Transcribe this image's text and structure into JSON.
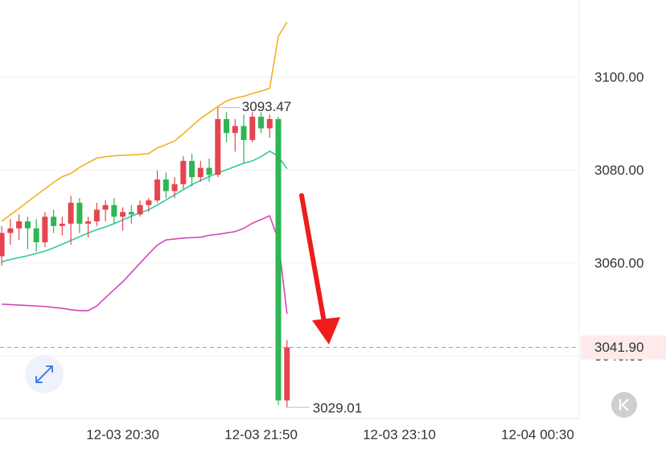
{
  "chart_data": {
    "type": "candlestick",
    "x": [
      "12-03 19:20",
      "12-03 19:25",
      "12-03 19:30",
      "12-03 19:35",
      "12-03 19:40",
      "12-03 19:45",
      "12-03 19:50",
      "12-03 19:55",
      "12-03 20:00",
      "12-03 20:05",
      "12-03 20:10",
      "12-03 20:15",
      "12-03 20:20",
      "12-03 20:25",
      "12-03 20:30",
      "12-03 20:35",
      "12-03 20:40",
      "12-03 20:45",
      "12-03 20:50",
      "12-03 20:55",
      "12-03 21:00",
      "12-03 21:05",
      "12-03 21:10",
      "12-03 21:15",
      "12-03 21:20",
      "12-03 21:25",
      "12-03 21:30",
      "12-03 21:35",
      "12-03 21:40",
      "12-03 21:45",
      "12-03 21:50",
      "12-03 21:55",
      "12-03 22:00",
      "12-03 22:05"
    ],
    "open": [
      3061.5,
      3066.5,
      3067.5,
      3069.0,
      3067.5,
      3064.5,
      3070.0,
      3068.0,
      3068.5,
      3073.0,
      3068.5,
      3069.0,
      3071.5,
      3072.5,
      3070.0,
      3071.0,
      3070.5,
      3072.5,
      3073.5,
      3078.0,
      3075.5,
      3077.0,
      3082.0,
      3078.5,
      3080.5,
      3079.0,
      3091.0,
      3088.0,
      3089.5,
      3086.5,
      3091.5,
      3089.0,
      3091.0,
      3030.5
    ],
    "high": [
      3068.0,
      3069.5,
      3070.5,
      3070.0,
      3069.5,
      3071.0,
      3071.5,
      3070.0,
      3074.5,
      3074.0,
      3070.0,
      3073.0,
      3073.5,
      3074.0,
      3072.0,
      3072.5,
      3073.5,
      3074.0,
      3080.0,
      3079.5,
      3078.5,
      3083.0,
      3083.5,
      3082.0,
      3082.5,
      3093.47,
      3092.5,
      3091.0,
      3092.0,
      3092.5,
      3092.5,
      3092.0,
      3091.5,
      3043.5
    ],
    "low": [
      3059.5,
      3064.0,
      3065.0,
      3063.0,
      3062.5,
      3063.5,
      3066.5,
      3066.0,
      3064.0,
      3066.5,
      3065.5,
      3068.0,
      3069.0,
      3068.5,
      3067.0,
      3068.5,
      3070.0,
      3071.0,
      3073.0,
      3074.0,
      3074.0,
      3076.0,
      3076.5,
      3077.5,
      3077.5,
      3078.5,
      3086.0,
      3084.0,
      3081.5,
      3086.0,
      3088.0,
      3087.0,
      3029.5,
      3029.01
    ],
    "close": [
      3066.5,
      3067.5,
      3069.0,
      3067.5,
      3064.5,
      3070.0,
      3068.0,
      3068.5,
      3073.0,
      3068.5,
      3069.0,
      3071.5,
      3072.5,
      3070.0,
      3071.0,
      3070.5,
      3072.5,
      3073.5,
      3078.0,
      3075.5,
      3077.0,
      3082.0,
      3078.5,
      3080.5,
      3079.0,
      3091.0,
      3088.0,
      3089.5,
      3086.5,
      3091.5,
      3089.0,
      3091.0,
      3030.5,
      3041.9
    ],
    "up_color": "#e5454f",
    "down_color": "#2fb553",
    "lines": [
      {
        "color": "#f2b01e",
        "values": [
          3069.0,
          3070.4,
          3071.8,
          3073.2,
          3074.6,
          3076.0,
          3077.4,
          3078.6,
          3079.3,
          3080.6,
          3081.6,
          3082.6,
          3082.9,
          3083.1,
          3083.2,
          3083.3,
          3083.4,
          3083.6,
          3084.8,
          3085.5,
          3086.3,
          3087.8,
          3089.5,
          3091.1,
          3092.4,
          3093.7,
          3094.9,
          3095.5,
          3095.9,
          3096.5,
          3097.0,
          3097.6,
          3108.8,
          3111.8
        ]
      },
      {
        "color": "#2ec9a3",
        "values": [
          3060.3,
          3060.8,
          3061.2,
          3061.6,
          3062.1,
          3062.6,
          3063.3,
          3064.1,
          3064.9,
          3065.7,
          3066.5,
          3067.2,
          3067.8,
          3068.5,
          3069.3,
          3070.1,
          3070.8,
          3071.5,
          3072.5,
          3073.6,
          3074.7,
          3075.8,
          3076.9,
          3077.8,
          3078.6,
          3079.4,
          3080.1,
          3080.8,
          3081.5,
          3082.0,
          3082.9,
          3084.1,
          3083.0,
          3080.3
        ]
      },
      {
        "color": "#d447b8",
        "values": [
          3051.2,
          3051.1,
          3051.0,
          3050.9,
          3050.8,
          3050.7,
          3050.5,
          3050.3,
          3050.0,
          3049.8,
          3049.8,
          3050.8,
          3052.6,
          3054.3,
          3056.0,
          3058.0,
          3060.0,
          3062.0,
          3063.9,
          3065.0,
          3065.2,
          3065.4,
          3065.5,
          3065.6,
          3066.0,
          3066.2,
          3066.5,
          3066.8,
          3067.5,
          3068.6,
          3069.4,
          3070.2,
          3065.0,
          3049.1
        ]
      }
    ],
    "xlim": [
      "12-03 19:19",
      "12-04 00:54"
    ],
    "xticks": [
      "12-03 20:30",
      "12-03 21:50",
      "12-03 23:10",
      "12-04 00:30"
    ],
    "ylim": [
      3026.6,
      3116.6
    ],
    "yticks": [
      {
        "value": 3040,
        "label": "3040.00"
      },
      {
        "value": 3060,
        "label": "3060.00"
      },
      {
        "value": 3080,
        "label": "3080.00"
      },
      {
        "value": 3100,
        "label": "3100.00"
      }
    ],
    "current_price": {
      "value": 3041.9,
      "label": "3041.90"
    },
    "grid": true
  }
}
